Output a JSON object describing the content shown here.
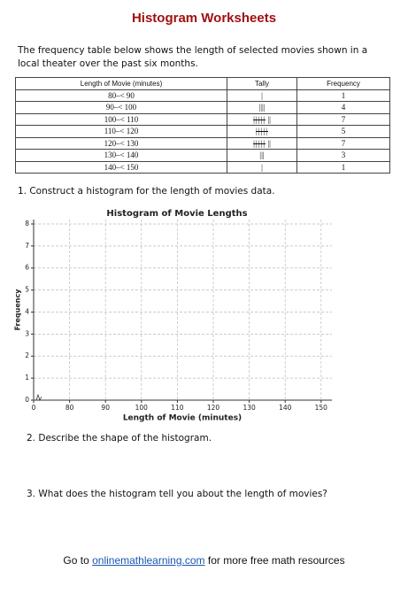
{
  "header": {
    "title": "Histogram Worksheets"
  },
  "intro": "The frequency table below shows the length of selected movies shown in a local theater over the past six months.",
  "table": {
    "columns": [
      "Length of Movie (minutes)",
      "Tally",
      "Frequency"
    ],
    "rows": [
      [
        "80–< 90",
        "|",
        1
      ],
      [
        "90–< 100",
        "||||",
        4
      ],
      [
        "100–< 110",
        "||||| ||",
        7
      ],
      [
        "110–< 120",
        "|||||",
        5
      ],
      [
        "120–< 130",
        "||||| ||",
        7
      ],
      [
        "130–< 140",
        "|||",
        3
      ],
      [
        "140–< 150",
        "|",
        1
      ]
    ]
  },
  "questions": [
    "1. Construct a histogram for the length of movies data.",
    "2. Describe the shape of the histogram.",
    "3. What does the histogram tell you about the length of movies?"
  ],
  "footer": {
    "before": "Go to",
    "link": "onlinemathlearning.com",
    "after": "for more free math resources"
  },
  "chart_data": {
    "type": "histogram",
    "title": "Histogram of Movie Lengths",
    "xlabel": "Length of Movie (minutes)",
    "ylabel": "Frequency",
    "xlim": [
      0,
      153
    ],
    "xbreak": [
      0,
      70
    ],
    "xticks": [
      0,
      80,
      90,
      100,
      110,
      120,
      130,
      140,
      150
    ],
    "ylim": [
      0,
      8.2
    ],
    "yticks": [
      0,
      1,
      2,
      3,
      4,
      5,
      6,
      7,
      8
    ],
    "grid": true
  }
}
